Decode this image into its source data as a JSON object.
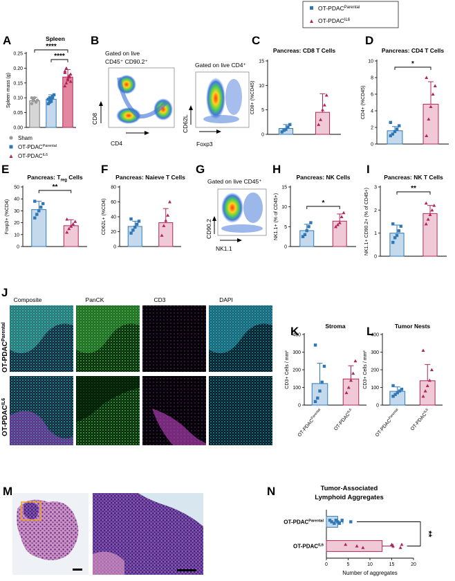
{
  "legend_top": {
    "items": [
      {
        "base": "OT-PDAC",
        "sup": "Parental",
        "marker": "square",
        "color": "#2f78b7"
      },
      {
        "base": "OT-PDAC",
        "sup": "IL6",
        "marker": "triangle",
        "color": "#b0245a"
      }
    ]
  },
  "colors": {
    "sham": "#9a9a9a",
    "parental": "#2f78b7",
    "parental_fill": "#c5d9ec",
    "il6": "#b0245a",
    "il6_fill": "#f0c9d7",
    "il6_fill_dark": "#e2879f"
  },
  "panels": {
    "A": "A",
    "B": "B",
    "C": "C",
    "D": "D",
    "E": "E",
    "F": "F",
    "G": "G",
    "H": "H",
    "I": "I",
    "J": "J",
    "K": "K",
    "L": "L",
    "M": "M",
    "N": "N"
  },
  "legend_A": {
    "sham": "Sham",
    "parental_base": "OT-PDAC",
    "parental_sup": "Parental",
    "il6_base": "OT-PDAC",
    "il6_sup": "IL6"
  },
  "flow": {
    "b1_gate_line1": "Gated on live",
    "b1_gate_line2": "CD45⁺ CD90.2⁺",
    "b1_x": "CD4",
    "b1_y": "CD8",
    "b2_gate": "Gated on live CD4⁺",
    "b2_x": "Foxp3",
    "b2_y": "CD62L",
    "g_gate": "Gated on live CD45⁺",
    "g_x": "NK1.1",
    "g_y": "CD90.2"
  },
  "microscopy": {
    "col_headers": [
      "Composite",
      "PanCK",
      "CD3",
      "DAPI"
    ],
    "row_labels": [
      {
        "base": "OT-PDAC",
        "sup": "Parental"
      },
      {
        "base": "OT-PDAC",
        "sup": "IL6"
      }
    ]
  },
  "chart_data": [
    {
      "id": "A",
      "type": "bar",
      "title": "Spleen",
      "ylabel": "Spleen mass (g)",
      "ylim": [
        0,
        0.25
      ],
      "yticks": [
        0,
        0.05,
        0.1,
        0.15,
        0.2,
        0.25
      ],
      "ytick_labels": [
        "0.00",
        "0.05",
        "0.10",
        "0.15",
        "0.20",
        "0.25"
      ],
      "categories": [
        "Sham",
        "OT-PDAC Parental",
        "OT-PDAC IL6"
      ],
      "values": [
        0.09,
        0.095,
        0.17
      ],
      "errors": [
        0.012,
        0.015,
        0.025
      ],
      "points": [
        [
          0.08,
          0.09,
          0.1,
          0.085,
          0.092,
          0.1,
          0.095
        ],
        [
          0.08,
          0.085,
          0.09,
          0.1,
          0.11,
          0.095,
          0.1,
          0.088,
          0.105
        ],
        [
          0.14,
          0.15,
          0.16,
          0.17,
          0.18,
          0.19,
          0.2,
          0.165,
          0.175,
          0.155,
          0.185
        ]
      ],
      "significance": [
        {
          "from": 0,
          "to": 2,
          "label": "****"
        },
        {
          "from": 1,
          "to": 2,
          "label": "****"
        }
      ]
    },
    {
      "id": "C",
      "type": "bar",
      "title": "Pancreas: CD8 T Cells",
      "ylabel": "CD8+ (%CD45)",
      "ylim": [
        0,
        15
      ],
      "yticks": [
        0,
        5,
        10,
        15
      ],
      "ytick_labels": [
        "0",
        "5",
        "10",
        "15"
      ],
      "categories": [
        "OT-PDAC Parental",
        "OT-PDAC IL6"
      ],
      "values": [
        1.2,
        4.5
      ],
      "errors": [
        0.8,
        3.8
      ],
      "points": [
        [
          0.5,
          0.8,
          1.0,
          1.5,
          2.0
        ],
        [
          2.0,
          3.0,
          5.0,
          6.0,
          8.0
        ]
      ]
    },
    {
      "id": "D",
      "type": "bar",
      "title": "Pancreas: CD4 T Cells",
      "ylabel": "CD4+ (%CD45)",
      "ylim": [
        0,
        10
      ],
      "yticks": [
        0,
        2,
        4,
        6,
        8,
        10
      ],
      "ytick_labels": [
        "0",
        "2",
        "4",
        "6",
        "8",
        "10"
      ],
      "categories": [
        "OT-PDAC Parental",
        "OT-PDAC IL6"
      ],
      "values": [
        1.6,
        4.8
      ],
      "errors": [
        0.5,
        2.7
      ],
      "points": [
        [
          1.0,
          1.2,
          1.5,
          1.8,
          2.2,
          2.6
        ],
        [
          1.0,
          3.0,
          4.5,
          6.0,
          7.0,
          8.0
        ]
      ],
      "significance": [
        {
          "from": 0,
          "to": 1,
          "label": "*"
        }
      ]
    },
    {
      "id": "E",
      "type": "bar",
      "title_base": "Pancreas: T",
      "title_sub": "reg",
      "title_tail": " Cells",
      "ylabel": "Foxp3+ (%CD4)",
      "ylim": [
        0,
        50
      ],
      "yticks": [
        0,
        10,
        20,
        30,
        40,
        50
      ],
      "ytick_labels": [
        "0",
        "10",
        "20",
        "30",
        "40",
        "50"
      ],
      "categories": [
        "OT-PDAC Parental",
        "OT-PDAC IL6"
      ],
      "values": [
        31,
        17.5
      ],
      "errors": [
        7,
        5
      ],
      "points": [
        [
          24,
          27,
          30,
          33,
          36,
          38
        ],
        [
          12,
          15,
          17,
          19,
          21,
          23
        ]
      ],
      "significance": [
        {
          "from": 0,
          "to": 1,
          "label": "**"
        }
      ]
    },
    {
      "id": "F",
      "type": "bar",
      "title": "Pancreas: Naieve T Cells",
      "ylabel": "CD62L+ (%CD4)",
      "ylim": [
        0,
        80
      ],
      "yticks": [
        0,
        20,
        40,
        60,
        80
      ],
      "ytick_labels": [
        "0",
        "20",
        "40",
        "60",
        "80"
      ],
      "categories": [
        "OT-PDAC Parental",
        "OT-PDAC IL6"
      ],
      "values": [
        27,
        32
      ],
      "errors": [
        7,
        19
      ],
      "points": [
        [
          18,
          22,
          26,
          30,
          34,
          37
        ],
        [
          15,
          28,
          35,
          42,
          60
        ]
      ]
    },
    {
      "id": "H",
      "type": "bar",
      "title": "Pancreas: NK Cells",
      "ylabel": "NK1.1+ (% of CD45+)",
      "ylim": [
        0,
        15
      ],
      "yticks": [
        0,
        5,
        10,
        15
      ],
      "ytick_labels": [
        "0",
        "5",
        "10",
        "15"
      ],
      "categories": [
        "OT-PDAC Parental",
        "OT-PDAC IL6"
      ],
      "values": [
        4,
        6.4
      ],
      "errors": [
        1.6,
        1.8
      ],
      "points": [
        [
          2.5,
          3.0,
          4.0,
          5.0,
          6.0
        ],
        [
          5.0,
          5.5,
          6.0,
          7.5,
          8.5
        ]
      ],
      "significance": [
        {
          "from": 0,
          "to": 1,
          "label": "*"
        }
      ]
    },
    {
      "id": "I",
      "type": "bar",
      "title": "Pancreas: NK T Cells",
      "ylabel": "NK1.1+ CD90.2+ (% of CD45+)",
      "ylim": [
        0,
        3
      ],
      "yticks": [
        0,
        1,
        2,
        3
      ],
      "ytick_labels": [
        "0",
        "1",
        "2",
        "3"
      ],
      "categories": [
        "OT-PDAC Parental",
        "OT-PDAC IL6"
      ],
      "values": [
        1.0,
        1.85
      ],
      "errors": [
        0.35,
        0.35
      ],
      "points": [
        [
          0.6,
          0.8,
          0.9,
          1.1,
          1.3,
          1.4
        ],
        [
          1.4,
          1.6,
          1.8,
          2.0,
          2.2,
          2.3
        ]
      ],
      "significance": [
        {
          "from": 0,
          "to": 1,
          "label": "**"
        }
      ]
    },
    {
      "id": "K",
      "type": "bar",
      "title": "Stroma",
      "ylabel": "CD3+ Cells / mm²",
      "ylim": [
        0,
        400
      ],
      "yticks": [
        0,
        100,
        200,
        300,
        400
      ],
      "ytick_labels": [
        "0",
        "100",
        "200",
        "300",
        "400"
      ],
      "categories": [
        "OT-PDAC Parental",
        "OT-PDAC IL6"
      ],
      "xtick_labels": [
        {
          "base": "OT-PDAC",
          "sup": "Parental"
        },
        {
          "base": "OT-PDAC",
          "sup": "IL6"
        }
      ],
      "values": [
        122,
        148
      ],
      "errors": [
        115,
        75
      ],
      "points": [
        [
          20,
          40,
          80,
          130,
          220,
          340
        ],
        [
          70,
          100,
          140,
          180,
          250
        ]
      ]
    },
    {
      "id": "L",
      "type": "bar",
      "title": "Tumor Nests",
      "ylabel": "CD3+ Cells / mm²",
      "ylim": [
        0,
        400
      ],
      "yticks": [
        0,
        100,
        200,
        300,
        400
      ],
      "ytick_labels": [
        "0",
        "100",
        "200",
        "300",
        "400"
      ],
      "categories": [
        "OT-PDAC Parental",
        "OT-PDAC IL6"
      ],
      "xtick_labels": [
        {
          "base": "OT-PDAC",
          "sup": "Parental"
        },
        {
          "base": "OT-PDAC",
          "sup": "IL6"
        }
      ],
      "values": [
        78,
        138
      ],
      "errors": [
        25,
        92
      ],
      "points": [
        [
          50,
          60,
          70,
          80,
          90,
          110
        ],
        [
          50,
          80,
          110,
          140,
          200,
          310
        ]
      ]
    },
    {
      "id": "N",
      "type": "bar",
      "orientation": "horizontal",
      "title_line1": "Tumor-Associated",
      "title_line2": "Lymphoid Aggregates",
      "xlabel": "Number of aggregates",
      "xlim": [
        0,
        20
      ],
      "xticks": [
        0,
        5,
        10,
        15,
        20
      ],
      "xtick_labels": [
        "0",
        "5",
        "10",
        "15",
        "20"
      ],
      "categories": [
        {
          "base": "OT-PDAC",
          "sup": "Parental"
        },
        {
          "base": "OT-PDAC",
          "sup": "IL6"
        }
      ],
      "values": [
        2.6,
        12.8
      ],
      "errors": [
        1.2,
        2.5
      ],
      "points": [
        [
          0.8,
          1.2,
          1.8,
          2.2,
          2.6,
          3.0,
          3.6,
          5.6
        ],
        [
          4.4,
          7.0,
          8.4,
          15.0,
          15.3,
          17.0,
          17.3
        ]
      ],
      "significance": [
        {
          "from": 0,
          "to": 1,
          "label": "**"
        }
      ]
    }
  ]
}
